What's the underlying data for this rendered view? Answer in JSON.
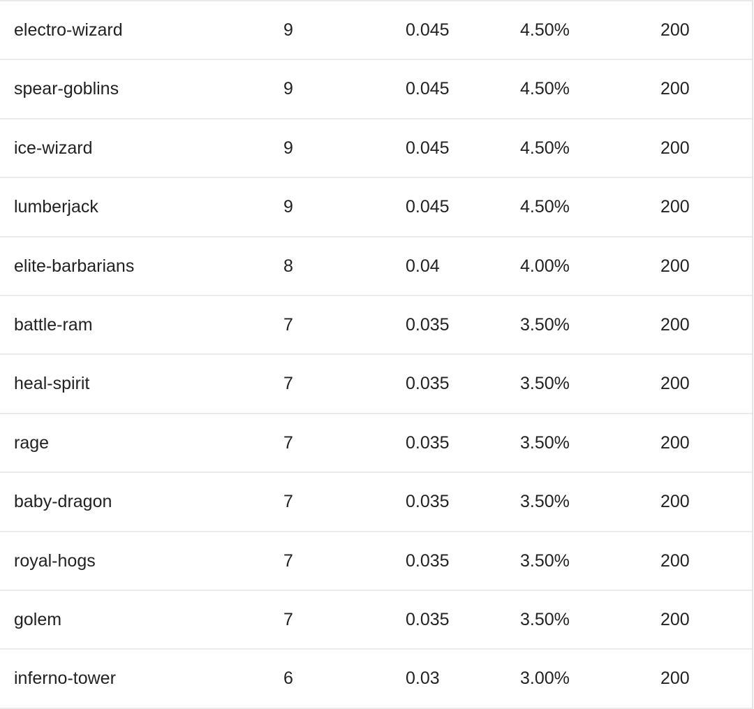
{
  "rows": [
    [
      "electro-wizard",
      "9",
      "0.045",
      "4.50%",
      "200"
    ],
    [
      "spear-goblins",
      "9",
      "0.045",
      "4.50%",
      "200"
    ],
    [
      "ice-wizard",
      "9",
      "0.045",
      "4.50%",
      "200"
    ],
    [
      "lumberjack",
      "9",
      "0.045",
      "4.50%",
      "200"
    ],
    [
      "elite-barbarians",
      "8",
      "0.04",
      "4.00%",
      "200"
    ],
    [
      "battle-ram",
      "7",
      "0.035",
      "3.50%",
      "200"
    ],
    [
      "heal-spirit",
      "7",
      "0.035",
      "3.50%",
      "200"
    ],
    [
      "rage",
      "7",
      "0.035",
      "3.50%",
      "200"
    ],
    [
      "baby-dragon",
      "7",
      "0.035",
      "3.50%",
      "200"
    ],
    [
      "royal-hogs",
      "7",
      "0.035",
      "3.50%",
      "200"
    ],
    [
      "golem",
      "7",
      "0.035",
      "3.50%",
      "200"
    ],
    [
      "inferno-tower",
      "6",
      "0.03",
      "3.00%",
      "200"
    ]
  ]
}
